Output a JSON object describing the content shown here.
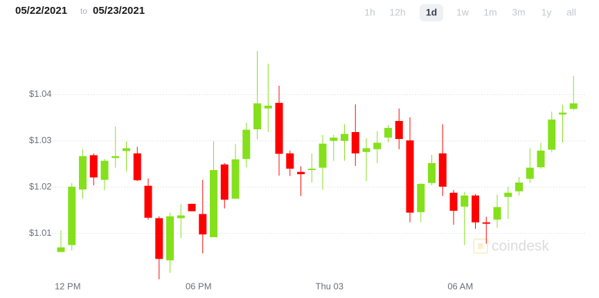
{
  "header": {
    "from": "05/22/2021",
    "to_word": "to",
    "until": "05/23/2021",
    "ranges": [
      "1h",
      "12h",
      "1d",
      "1w",
      "1m",
      "3m",
      "1y",
      "all"
    ],
    "selected_range": 2
  },
  "watermark": "coindesk",
  "chart_data": {
    "type": "candlestick",
    "categories": [
      null,
      "12 PM",
      null,
      null,
      null,
      null,
      null,
      null,
      null,
      null,
      null,
      null,
      null,
      "06 PM",
      null,
      null,
      null,
      null,
      null,
      null,
      null,
      null,
      null,
      null,
      null,
      "Thu 03",
      null,
      null,
      null,
      null,
      null,
      null,
      null,
      null,
      null,
      null,
      null,
      "06 AM",
      null,
      null,
      null,
      null,
      null,
      null,
      null,
      null,
      null,
      null
    ],
    "open": [
      1.006,
      1.0075,
      1.0195,
      1.0269,
      1.0216,
      1.0263,
      1.0278,
      1.0273,
      1.0203,
      1.0133,
      1.0042,
      1.0133,
      1.0164,
      1.0142,
      1.0092,
      1.0249,
      1.0175,
      1.0261,
      1.0325,
      1.037,
      1.0382,
      1.0273,
      1.0233,
      1.0237,
      1.0242,
      1.03,
      1.03,
      1.0319,
      1.0276,
      1.0282,
      1.0307,
      1.0343,
      1.0301,
      1.0146,
      1.0209,
      1.0273,
      1.0188,
      1.0158,
      1.0182,
      1.0124,
      1.013,
      1.0179,
      1.0191,
      1.0218,
      1.0243,
      1.0281,
      1.0357,
      1.0369
    ],
    "high": [
      1.0107,
      1.0209,
      1.0282,
      1.0273,
      1.0261,
      1.0331,
      1.0299,
      1.0287,
      1.0219,
      1.0137,
      1.0145,
      1.0164,
      1.0164,
      1.0216,
      1.0299,
      1.0252,
      1.0293,
      1.0339,
      1.0494,
      1.0467,
      1.0419,
      1.0279,
      1.0245,
      1.0273,
      1.0313,
      1.0313,
      1.0336,
      1.0379,
      1.0306,
      1.0321,
      1.0334,
      1.037,
      1.0351,
      1.0209,
      1.027,
      1.0336,
      1.0194,
      1.019,
      1.0185,
      1.0136,
      1.0184,
      1.0201,
      1.0222,
      1.0284,
      1.0296,
      1.0363,
      1.0378,
      1.044
    ],
    "low": [
      1.006,
      1.0063,
      1.0175,
      1.0204,
      1.0194,
      1.0242,
      1.0234,
      1.0213,
      1.013,
      1.0001,
      1.0015,
      1.009,
      1.0148,
      1.0057,
      1.0092,
      1.0154,
      1.0175,
      1.0243,
      1.0303,
      1.0319,
      1.0225,
      1.0224,
      1.0181,
      1.021,
      1.0194,
      1.0257,
      1.0257,
      1.0246,
      1.0213,
      1.0252,
      1.0297,
      1.0282,
      1.0124,
      1.0124,
      1.0204,
      1.0181,
      1.0119,
      1.0075,
      1.011,
      1.0078,
      1.0112,
      1.0131,
      1.0182,
      1.0209,
      1.024,
      1.0275,
      1.0296,
      1.0366
    ],
    "close": [
      1.007,
      1.0201,
      1.0267,
      1.0221,
      1.0257,
      1.0267,
      1.0284,
      1.0215,
      1.0134,
      1.0045,
      1.0137,
      1.0139,
      1.0148,
      1.0098,
      1.0237,
      1.0173,
      1.026,
      1.0324,
      1.0381,
      1.0376,
      1.0272,
      1.024,
      1.0228,
      1.024,
      1.0294,
      1.0307,
      1.0315,
      1.0273,
      1.0284,
      1.0296,
      1.0328,
      1.0304,
      1.0145,
      1.0207,
      1.0252,
      1.0201,
      1.0149,
      1.0182,
      1.0124,
      1.0121,
      1.0157,
      1.0188,
      1.021,
      1.0242,
      1.0279,
      1.0346,
      1.0361,
      1.0381
    ],
    "up_color": "#84e01b",
    "down_color": "#ff0000",
    "ylim": [
      0.9992,
      1.0537
    ],
    "yticks": [
      {
        "value": 1.01,
        "label": "$1.01"
      },
      {
        "value": 1.02,
        "label": "$1.02"
      },
      {
        "value": 1.03,
        "label": "$1.03"
      },
      {
        "value": 1.04,
        "label": "$1.04"
      }
    ],
    "grid": true
  }
}
